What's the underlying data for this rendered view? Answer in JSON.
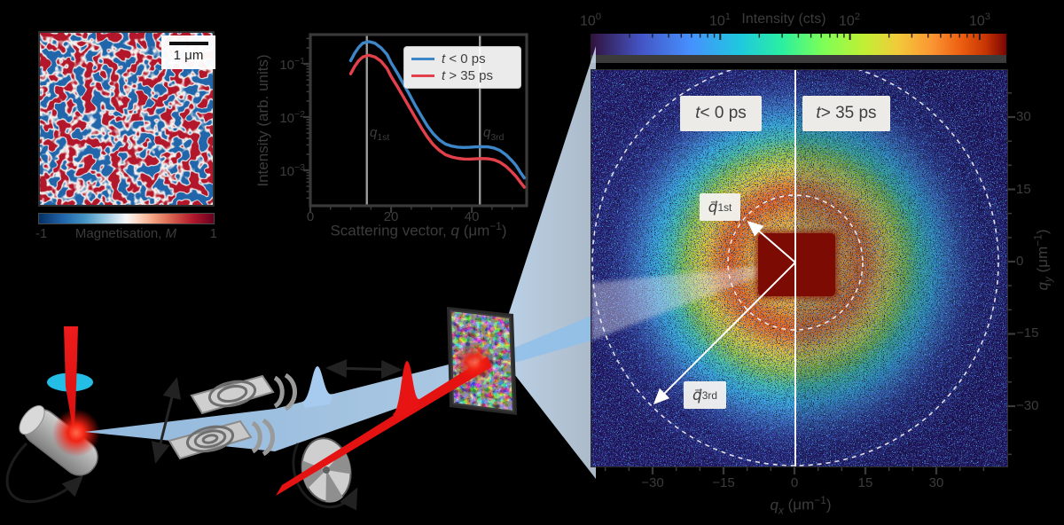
{
  "mag_panel": {
    "scalebar_label": "1 μm",
    "colorbar_min": "-1",
    "colorbar_max": "1",
    "colorbar_label_html": "Magnetisation, <i>M</i>"
  },
  "iq_chart": {
    "ylabel_html": "Intensity (arb. units)",
    "xlabel_html": "Scattering vector, <i>q</i> (μm<sup>−1</sup>)",
    "xtick_labels": [
      "0",
      "20",
      "40"
    ],
    "ytick_labels_html": [
      "10<sup>−1</sup>",
      "10<sup>−2</sup>",
      "10<sup>−3</sup>"
    ],
    "vline_labels_html": [
      "<i>q</i><sub>1st</sub>",
      "<i>q</i><sub>3rd</sub>"
    ]
  },
  "detector": {
    "colorbar": {
      "title": "Intensity (cts)",
      "tick_labels_html": [
        "10<sup>0</sup>",
        "10<sup>1</sup>",
        "10<sup>2</sup>",
        "10<sup>3</sup>"
      ]
    },
    "labels": {
      "left_html": "<i>t</i> < 0 ps",
      "right_html": "<i>t</i> > 35 ps",
      "q1_html": "<i>q&#8407;</i><sub>1st</sub>",
      "q3_html": "<i>q&#8407;</i><sub>3rd</sub>"
    },
    "xtick_labels": [
      "−30",
      "−15",
      "0",
      "15",
      "30"
    ],
    "ytick_labels": [
      "30",
      "15",
      "0",
      "−15",
      "−30"
    ],
    "xlabel_html": "<i>q<sub>x</sub></i> (μm<sup>−1</sup>)",
    "ylabel_html": "<i>q<sub>y</sub></i> (μm<sup>−1</sup>)"
  },
  "chart_data": [
    {
      "type": "line",
      "title": "",
      "xlabel": "Scattering vector, q (μm⁻¹)",
      "ylabel": "Intensity (arb. units)",
      "xlim": [
        0,
        53.5
      ],
      "yscale": "log",
      "ylim": [
        0.0002,
        0.36
      ],
      "grid": false,
      "legend_position": "upper right",
      "vlines": [
        {
          "x": 14,
          "label": "q_1st"
        },
        {
          "x": 42,
          "label": "q_3rd"
        }
      ],
      "series": [
        {
          "name": "t < 0 ps",
          "name_html": "<i>t</i> < 0 ps",
          "color": "#3d87c8",
          "x": [
            10,
            11,
            12,
            13,
            14.5,
            16,
            17.5,
            19,
            20,
            21.5,
            23,
            24.5,
            26,
            27.5,
            29,
            30.5,
            32,
            33.5,
            35,
            36.5,
            38,
            39.5,
            41,
            42.5,
            44,
            45.5,
            47,
            48.5,
            50,
            51,
            52,
            53
          ],
          "y": [
            0.115,
            0.16,
            0.205,
            0.245,
            0.262,
            0.245,
            0.2,
            0.15,
            0.105,
            0.068,
            0.043,
            0.027,
            0.0165,
            0.0105,
            0.0068,
            0.0048,
            0.0037,
            0.0031,
            0.00285,
            0.00272,
            0.00268,
            0.0027,
            0.00275,
            0.00278,
            0.00275,
            0.00262,
            0.00235,
            0.00195,
            0.0015,
            0.00122,
            0.00092,
            0.00072
          ]
        },
        {
          "name": "t > 35 ps",
          "name_html": "<i>t</i> > 35 ps",
          "color": "#e2404a",
          "x": [
            10,
            11,
            12,
            13,
            14.5,
            16,
            17.5,
            19,
            20,
            21.5,
            23,
            24.5,
            26,
            27.5,
            29,
            30.5,
            32,
            33.5,
            35,
            36.5,
            38,
            39.5,
            41,
            42.5,
            44,
            45.5,
            47,
            48.5,
            50,
            51,
            52,
            53
          ],
          "y": [
            0.065,
            0.09,
            0.115,
            0.135,
            0.145,
            0.135,
            0.112,
            0.082,
            0.058,
            0.038,
            0.0245,
            0.0155,
            0.0098,
            0.0063,
            0.0042,
            0.003,
            0.00235,
            0.00196,
            0.00178,
            0.00168,
            0.00163,
            0.00162,
            0.00164,
            0.00166,
            0.00165,
            0.00157,
            0.00141,
            0.00118,
            0.00092,
            0.00076,
            0.0006,
            0.00048
          ]
        }
      ]
    },
    {
      "type": "heatmap",
      "title": "",
      "xlabel": "q_x (μm⁻¹)",
      "ylabel": "q_y (μm⁻¹)",
      "xticks": [
        -30,
        -15,
        0,
        15,
        30
      ],
      "yticks": [
        30,
        15,
        0,
        -15,
        -30
      ],
      "colorbar": {
        "label": "Intensity (cts)",
        "scale": "log",
        "ticks": [
          1,
          10,
          100,
          1000
        ]
      },
      "annotations": [
        "t < 0 ps",
        "t > 35 ps",
        "q⃗_1st",
        "q⃗_3rd"
      ],
      "rings": [
        {
          "q": 14,
          "label": "q_1st",
          "style": "dashed circle"
        },
        {
          "q": 42,
          "label": "q_3rd",
          "style": "dashed circle"
        }
      ],
      "halves": [
        {
          "side": "left",
          "label": "t < 0 ps"
        },
        {
          "side": "right",
          "label": "t > 35 ps"
        }
      ]
    }
  ],
  "mag_chart": {
    "type": "heatmap",
    "colorbar": {
      "label": "Magnetisation, M",
      "min": -1,
      "max": 1
    },
    "scalebar": "1 μm"
  }
}
